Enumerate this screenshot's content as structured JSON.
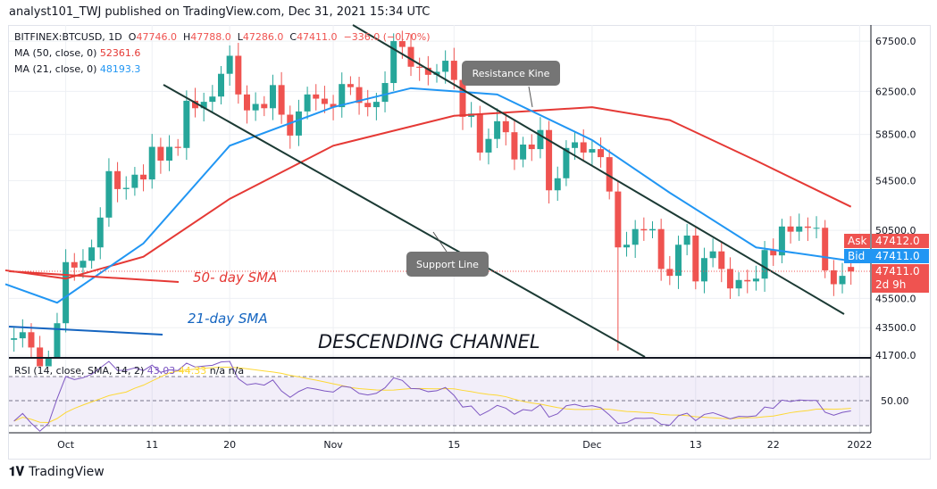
{
  "header": {
    "published": "analyst101_TWJ published on TradingView.com, Dec 31, 2021 15:34 UTC"
  },
  "legend": {
    "symbol": "BITFINEX:BTCUSD, 1D",
    "o_label": "O",
    "o": "47746.0",
    "h_label": "H",
    "h": "47788.0",
    "l_label": "L",
    "l": "47286.0",
    "c_label": "C",
    "c": "47411.0",
    "change": "−336.0 (−0.70%)",
    "ma50_label": "MA (50, close, 0)",
    "ma50_value": "52361.6",
    "ma21_label": "MA (21, close, 0)",
    "ma21_value": "48193.3",
    "rsi_label": "RSI (14, close, SMA, 14, 2)",
    "rsi_value": "43.03",
    "rsi_sma": "44.33",
    "rsi_na": "n/a  n/a"
  },
  "tags": {
    "ask_label": "Ask",
    "ask": "47412.0",
    "bid_label": "Bid",
    "bid": "47411.0",
    "last": "47411.0",
    "countdown": "2d 9h"
  },
  "annotations": {
    "resistance": "Resistance Kine",
    "support": "Support Line",
    "sma50": "50- day SMA",
    "sma21": "21-day SMA",
    "channel": "DESCENDING CHANNEL"
  },
  "footer": {
    "brand": "TradingView"
  },
  "colors": {
    "up": "#26a69a",
    "down": "#ef5350",
    "ma50": "#e53935",
    "ma21": "#2196f3",
    "rsi": "#7e57c2",
    "rsi_sma": "#fdd835"
  },
  "chart_data": {
    "type": "candlestick",
    "scale": "log",
    "price_ticks": [
      67500,
      62500,
      58500,
      54500,
      50500,
      45500,
      43500,
      41700
    ],
    "rsi_ticks": [
      50
    ],
    "time_ticks": [
      {
        "label": "Oct",
        "date": "2021-10-01"
      },
      {
        "label": "11",
        "date": "2021-10-11"
      },
      {
        "label": "20",
        "date": "2021-10-20"
      },
      {
        "label": "Nov",
        "date": "2021-11-01"
      },
      {
        "label": "15",
        "date": "2021-11-15"
      },
      {
        "label": "Dec",
        "date": "2021-12-01"
      },
      {
        "label": "13",
        "date": "2021-12-13"
      },
      {
        "label": "22",
        "date": "2021-12-22"
      },
      {
        "label": "2022",
        "date": "2022-01-01"
      }
    ],
    "start_date": "2021-09-24",
    "closes": [
      42700,
      42800,
      43200,
      42200,
      41000,
      41500,
      43800,
      48100,
      47700,
      48200,
      49200,
      51500,
      55300,
      53800,
      53900,
      55000,
      54600,
      57400,
      56200,
      57400,
      57300,
      61600,
      60900,
      61500,
      62000,
      64200,
      66000,
      62200,
      60700,
      61300,
      60900,
      63100,
      60300,
      58400,
      60600,
      62200,
      61800,
      61300,
      61000,
      63200,
      62900,
      61400,
      61000,
      61500,
      63300,
      67500,
      66900,
      64900,
      64800,
      64100,
      64400,
      65500,
      63600,
      60100,
      60400,
      56900,
      58100,
      59700,
      58700,
      56300,
      57600,
      57200,
      58900,
      53700,
      54700,
      57300,
      57800,
      56900,
      57200,
      56500,
      53600,
      49200,
      49400,
      50600,
      50500,
      50600,
      47600,
      47100,
      49400,
      50100,
      46700,
      48400,
      48900,
      47600,
      46200,
      46800,
      46700,
      46900,
      49000,
      48600,
      50800,
      50400,
      50800,
      50700,
      50700,
      47500,
      46500,
      47100,
      47411
    ],
    "ma50": [
      [
        "2021-09-24",
        47500
      ],
      [
        "2021-10-01",
        46900
      ],
      [
        "2021-10-10",
        48500
      ],
      [
        "2021-10-20",
        53000
      ],
      [
        "2021-11-01",
        57500
      ],
      [
        "2021-11-15",
        60200
      ],
      [
        "2021-12-01",
        61000
      ],
      [
        "2021-12-10",
        59800
      ],
      [
        "2021-12-20",
        56200
      ],
      [
        "2021-12-31",
        52361.6
      ]
    ],
    "ma21": [
      [
        "2021-09-24",
        46500
      ],
      [
        "2021-09-30",
        45200
      ],
      [
        "2021-10-10",
        49500
      ],
      [
        "2021-10-20",
        57500
      ],
      [
        "2021-11-01",
        61000
      ],
      [
        "2021-11-10",
        62800
      ],
      [
        "2021-11-20",
        62200
      ],
      [
        "2021-12-01",
        58000
      ],
      [
        "2021-12-10",
        53500
      ],
      [
        "2021-12-20",
        49200
      ],
      [
        "2021-12-31",
        48193.3
      ]
    ]
  }
}
